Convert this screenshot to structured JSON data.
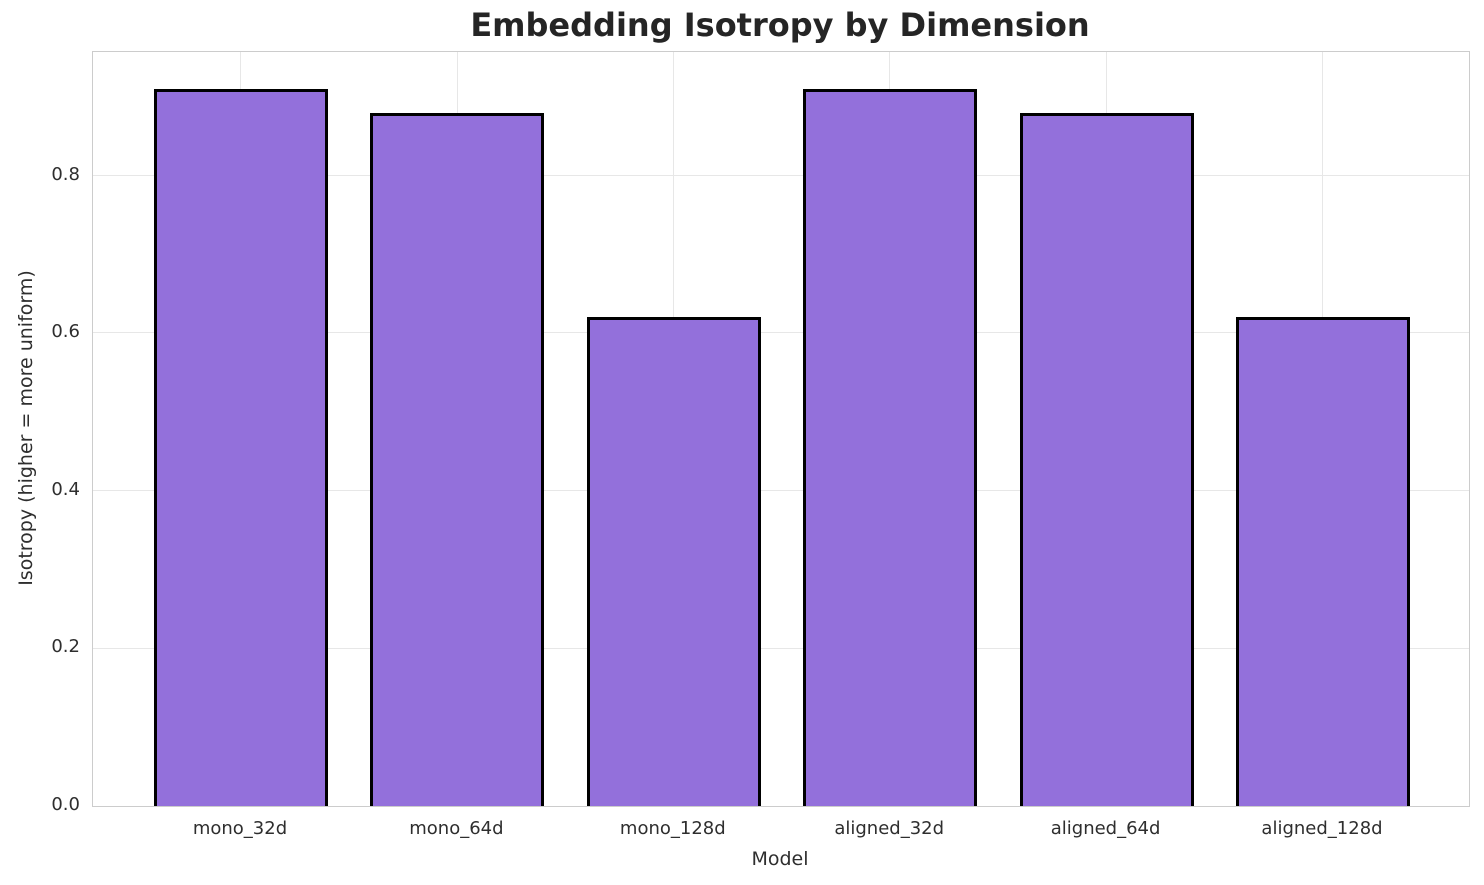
{
  "chart_data": {
    "type": "bar",
    "title": "Embedding Isotropy by Dimension",
    "xlabel": "Model",
    "ylabel": "Isotropy (higher = more uniform)",
    "categories": [
      "mono_32d",
      "mono_64d",
      "mono_128d",
      "aligned_32d",
      "aligned_64d",
      "aligned_128d"
    ],
    "values": [
      0.91,
      0.88,
      0.62,
      0.91,
      0.88,
      0.62
    ],
    "ylim": [
      0,
      0.9568
    ],
    "yticks": [
      0.0,
      0.2,
      0.4,
      0.6,
      0.8
    ],
    "ytick_labels": [
      "0.0",
      "0.2",
      "0.4",
      "0.6",
      "0.8"
    ],
    "grid": true,
    "legend_position": "none",
    "bar_color": "#9370DB",
    "bar_edge_color": "#000000",
    "grid_color": "#e7e7e7",
    "spine_color": "#cccccc"
  }
}
